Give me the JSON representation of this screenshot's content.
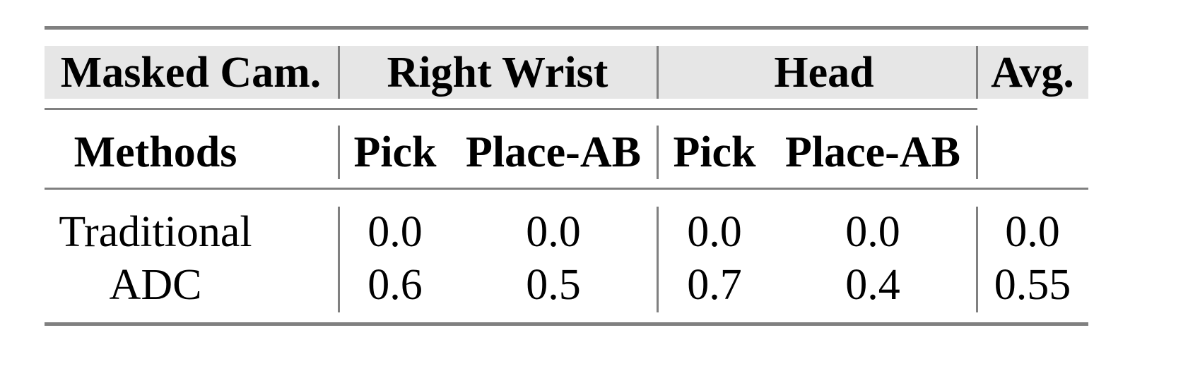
{
  "table": {
    "group_header": {
      "masked_cam": "Masked Cam.",
      "groups": [
        "Right Wrist",
        "Head"
      ],
      "avg": "Avg."
    },
    "sub_header": {
      "methods": "Methods",
      "columns": [
        "Pick",
        "Place-AB",
        "Pick",
        "Place-AB"
      ]
    },
    "rows": [
      {
        "method": "Traditional",
        "values": [
          "0.0",
          "0.0",
          "0.0",
          "0.0",
          "0.0"
        ]
      },
      {
        "method": "ADC",
        "values": [
          "0.6",
          "0.5",
          "0.7",
          "0.4",
          "0.55"
        ]
      }
    ],
    "header_bg_color": "#e6e6e6",
    "rule_color": "#808080"
  }
}
